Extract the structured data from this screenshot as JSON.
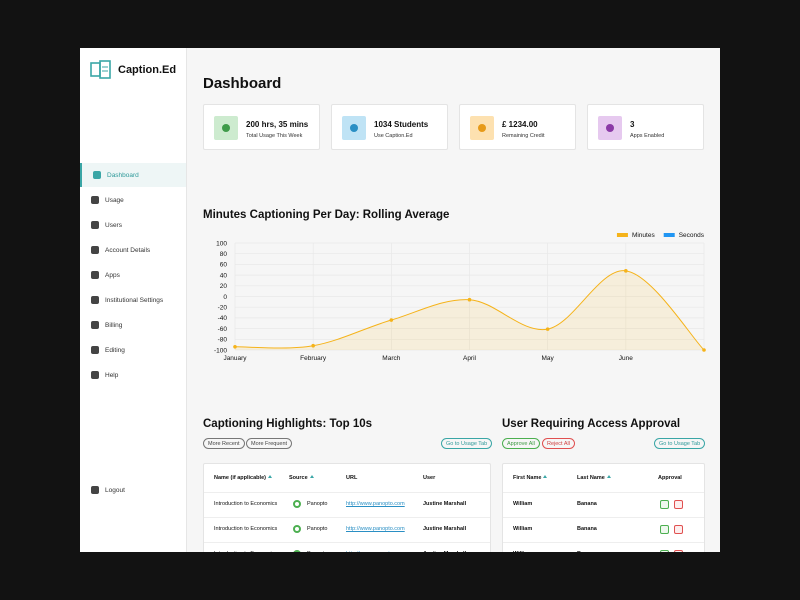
{
  "brand": "Caption.Ed",
  "nav": [
    "Dashboard",
    "Usage",
    "Users",
    "Account Details",
    "Apps",
    "Institutional Settings",
    "Billing",
    "Editing",
    "Help"
  ],
  "logout": "Logout",
  "header": {
    "title": "Dashboard"
  },
  "stats": [
    {
      "value": "200 hrs, 35 mins",
      "label": "Total Usage This Week",
      "color": "#cdebcf",
      "icon": "#3f9b4a"
    },
    {
      "value": "1034 Students",
      "label": "Use Caption.Ed",
      "color": "#bfe3f5",
      "icon": "#2a8fc4"
    },
    {
      "value": "£ 1234.00",
      "label": "Remaining Credit",
      "color": "#fde1b0",
      "icon": "#e79a18"
    },
    {
      "value": "3",
      "label": "Apps Enabled",
      "color": "#e6c9ef",
      "icon": "#8b3aa6"
    }
  ],
  "chart": {
    "type": "line",
    "title": "Minutes Captioning Per Day: Rolling Average",
    "categories": [
      "January",
      "February",
      "March",
      "April",
      "May",
      "June",
      null
    ],
    "series": [
      {
        "name": "Minutes",
        "color": "#f5b31a",
        "values": [
          -94,
          -92,
          -44,
          -6,
          -61,
          48,
          -100
        ]
      },
      {
        "name": "Seconds",
        "color": "#2196f3",
        "values": [
          null,
          null,
          null,
          null,
          null,
          null,
          null
        ]
      }
    ],
    "ylim": [
      -100,
      100
    ],
    "yticks": [
      -100,
      -80,
      -60,
      -40,
      -20,
      0,
      20,
      40,
      60,
      80,
      100
    ],
    "grid": true,
    "legend": "top-right"
  },
  "highlights": {
    "title": "Captioning Highlights: Top 10s",
    "filters": [
      "More Recent",
      "More Frequent"
    ],
    "action": "Go to Usage Tab",
    "columns": [
      "Name (if applicable)",
      "Source",
      "URL",
      "User"
    ],
    "rows": [
      [
        "Introduction to Economics",
        "Panopto",
        "http://www.panopto.com",
        "Justine Marshall"
      ],
      [
        "Introduction to Economics",
        "Panopto",
        "http://www.panopto.com",
        "Justine Marshall"
      ],
      [
        "Introduction to Economics",
        "Panopto",
        "http://www.panopto.com",
        "Justine Marshall"
      ]
    ]
  },
  "approvals": {
    "title": "User Requiring Access Approval",
    "actions": [
      "Approve All",
      "Reject All"
    ],
    "action": "Go to Usage Tab",
    "columns": [
      "First Name",
      "Last Name",
      "Approval"
    ],
    "rows": [
      [
        "William",
        "Banana"
      ],
      [
        "William",
        "Banana"
      ],
      [
        "William",
        "Banana"
      ]
    ]
  }
}
